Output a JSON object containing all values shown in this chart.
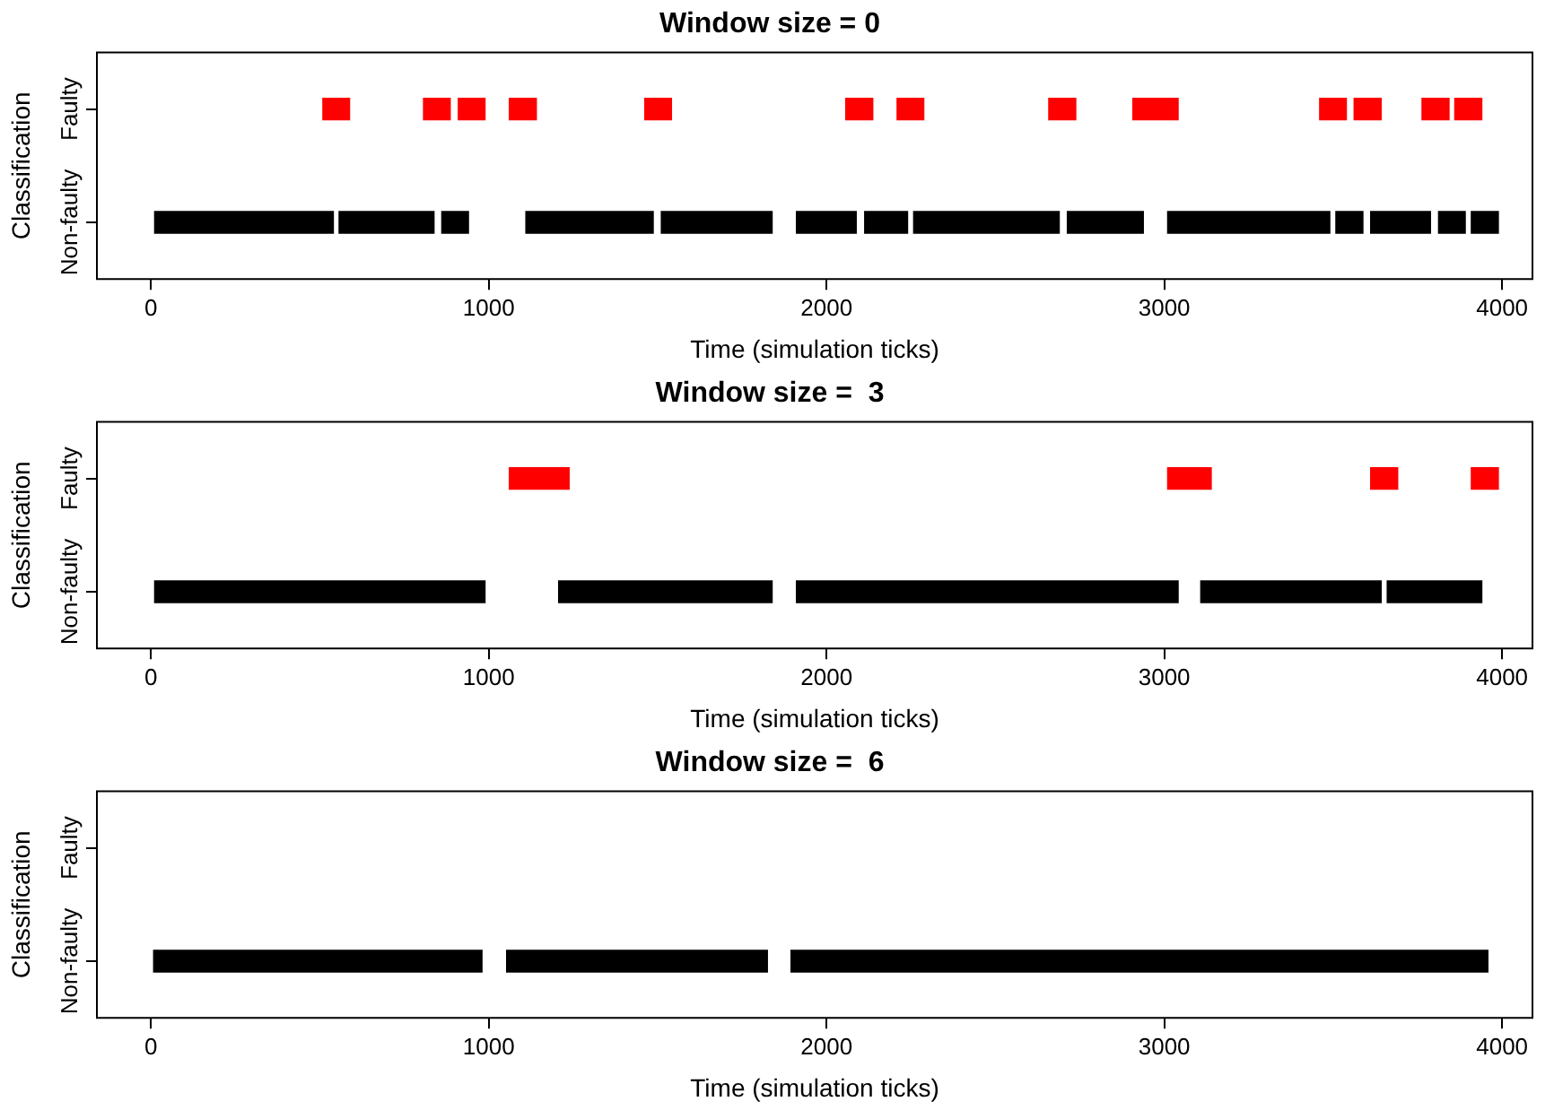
{
  "chart_data": [
    {
      "type": "bar",
      "orientation": "horizontal",
      "title": "Window size = 0",
      "xlabel": "Time (simulation ticks)",
      "ylabel": "Classification",
      "categories": [
        "Faulty",
        "Non-faulty"
      ],
      "xlim": [
        -160,
        4090
      ],
      "xticks": [
        0,
        1000,
        2000,
        3000,
        4000
      ],
      "series": [
        {
          "color": "#000000",
          "values": [
            null,
            529
          ],
          "base": [
            null,
            11
          ]
        },
        {
          "color": "#000000",
          "values": [
            null,
            281
          ],
          "base": [
            null,
            557
          ]
        },
        {
          "color": "#000000",
          "values": [
            null,
            79
          ],
          "base": [
            null,
            861
          ]
        },
        {
          "color": "#000000",
          "values": [
            null,
            377
          ],
          "base": [
            null,
            1110
          ]
        },
        {
          "color": "#000000",
          "values": [
            null,
            328
          ],
          "base": [
            null,
            1511
          ]
        },
        {
          "color": "#000000",
          "values": [
            null,
            177
          ],
          "base": [
            null,
            1911
          ]
        },
        {
          "color": "#000000",
          "values": [
            null,
            127
          ],
          "base": [
            null,
            2113
          ]
        },
        {
          "color": "#000000",
          "values": [
            null,
            431
          ],
          "base": [
            null,
            2258
          ]
        },
        {
          "color": "#000000",
          "values": [
            null,
            225
          ],
          "base": [
            null,
            2713
          ]
        },
        {
          "color": "#000000",
          "values": [
            null,
            480
          ],
          "base": [
            null,
            3010
          ]
        },
        {
          "color": "#000000",
          "values": [
            null,
            80
          ],
          "base": [
            null,
            3508
          ]
        },
        {
          "color": "#000000",
          "values": [
            null,
            177
          ],
          "base": [
            null,
            3611
          ]
        },
        {
          "color": "#000000",
          "values": [
            null,
            79
          ],
          "base": [
            null,
            3812
          ]
        },
        {
          "color": "#000000",
          "values": [
            null,
            80
          ],
          "base": [
            null,
            3909
          ]
        },
        {
          "color": "#ff0000",
          "values": [
            79,
            null
          ],
          "base": [
            509,
            null
          ]
        },
        {
          "color": "#ff0000",
          "values": [
            79,
            null
          ],
          "base": [
            807,
            null
          ]
        },
        {
          "color": "#ff0000",
          "values": [
            79,
            null
          ],
          "base": [
            910,
            null
          ]
        },
        {
          "color": "#ff0000",
          "values": [
            80,
            null
          ],
          "base": [
            1061,
            null
          ]
        },
        {
          "color": "#ff0000",
          "values": [
            79,
            null
          ],
          "base": [
            1462,
            null
          ]
        },
        {
          "color": "#ff0000",
          "values": [
            80,
            null
          ],
          "base": [
            2057,
            null
          ]
        },
        {
          "color": "#ff0000",
          "values": [
            79,
            null
          ],
          "base": [
            2209,
            null
          ]
        },
        {
          "color": "#ff0000",
          "values": [
            80,
            null
          ],
          "base": [
            2658,
            null
          ]
        },
        {
          "color": "#ff0000",
          "values": [
            134,
            null
          ],
          "base": [
            2907,
            null
          ]
        },
        {
          "color": "#ff0000",
          "values": [
            79,
            null
          ],
          "base": [
            3460,
            null
          ]
        },
        {
          "color": "#ff0000",
          "values": [
            80,
            null
          ],
          "base": [
            3562,
            null
          ]
        },
        {
          "color": "#ff0000",
          "values": [
            80,
            null
          ],
          "base": [
            3763,
            null
          ]
        },
        {
          "color": "#ff0000",
          "values": [
            80,
            null
          ],
          "base": [
            3860,
            null
          ]
        }
      ]
    },
    {
      "type": "bar",
      "orientation": "horizontal",
      "title": "Window size =  3",
      "xlabel": "Time (simulation ticks)",
      "ylabel": "Classification",
      "categories": [
        "Faulty",
        "Non-faulty"
      ],
      "xlim": [
        -160,
        4090
      ],
      "xticks": [
        0,
        1000,
        2000,
        3000,
        4000
      ],
      "series": [
        {
          "color": "#000000",
          "values": [
            null,
            978
          ],
          "base": [
            null,
            11
          ]
        },
        {
          "color": "#000000",
          "values": [
            null,
            632
          ],
          "base": [
            null,
            1207
          ]
        },
        {
          "color": "#000000",
          "values": [
            null,
            1130
          ],
          "base": [
            null,
            1911
          ]
        },
        {
          "color": "#000000",
          "values": [
            null,
            534
          ],
          "base": [
            null,
            3108
          ]
        },
        {
          "color": "#000000",
          "values": [
            null,
            280
          ],
          "base": [
            null,
            3660
          ]
        },
        {
          "color": "#ff0000",
          "values": [
            177,
            null
          ],
          "base": [
            1061,
            null
          ]
        },
        {
          "color": "#ff0000",
          "values": [
            129,
            null
          ],
          "base": [
            3010,
            null
          ]
        },
        {
          "color": "#ff0000",
          "values": [
            80,
            null
          ],
          "base": [
            3611,
            null
          ]
        },
        {
          "color": "#ff0000",
          "values": [
            80,
            null
          ],
          "base": [
            3909,
            null
          ]
        }
      ]
    },
    {
      "type": "bar",
      "orientation": "horizontal",
      "title": "Window size =  6",
      "xlabel": "Time (simulation ticks)",
      "ylabel": "Classification",
      "categories": [
        "Faulty",
        "Non-faulty"
      ],
      "xlim": [
        -160,
        4090
      ],
      "xticks": [
        0,
        1000,
        2000,
        3000,
        4000
      ],
      "series": [
        {
          "color": "#000000",
          "values": [
            null,
            972
          ],
          "base": [
            null,
            8
          ]
        },
        {
          "color": "#000000",
          "values": [
            null,
            772
          ],
          "base": [
            null,
            1053
          ]
        },
        {
          "color": "#000000",
          "values": [
            null,
            2063
          ],
          "base": [
            null,
            1895
          ]
        }
      ]
    }
  ]
}
